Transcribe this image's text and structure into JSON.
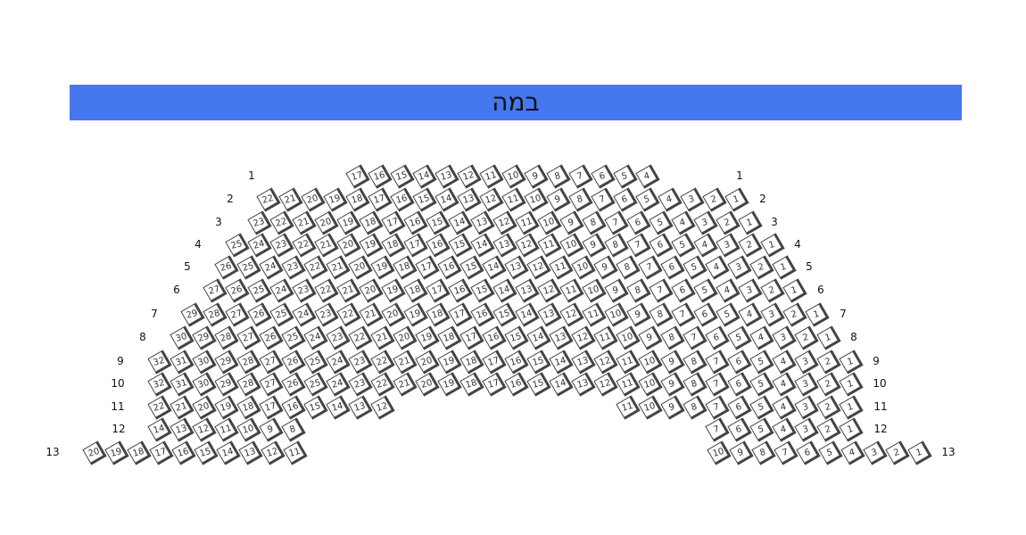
{
  "stage": {
    "label": "במה",
    "color": "#4577ee"
  },
  "rows": [
    {
      "label": "1",
      "blocks": [
        [
          17,
          16,
          15,
          14,
          13,
          12,
          11,
          10,
          9,
          8,
          7,
          6,
          5,
          4
        ]
      ]
    },
    {
      "label": "2",
      "blocks": [
        [
          22,
          21,
          20,
          19,
          18,
          17,
          16,
          15,
          14,
          13,
          12,
          11,
          10,
          9,
          8,
          7,
          6,
          5,
          4,
          3,
          2,
          1
        ]
      ]
    },
    {
      "label": "3",
      "blocks": [
        [
          23,
          22,
          21,
          20,
          19,
          18,
          17,
          16,
          15,
          14,
          13,
          12,
          11,
          10,
          9,
          8,
          7,
          6,
          5,
          4,
          3,
          2,
          1
        ]
      ]
    },
    {
      "label": "4",
      "blocks": [
        [
          25,
          24,
          23,
          22,
          21,
          20,
          19,
          18,
          17,
          16,
          15,
          14,
          13,
          12,
          11,
          10,
          9,
          8,
          7,
          6,
          5,
          4,
          3,
          2,
          1
        ]
      ]
    },
    {
      "label": "5",
      "blocks": [
        [
          26,
          25,
          24,
          23,
          22,
          21,
          20,
          19,
          18,
          17,
          16,
          15,
          14,
          13,
          12,
          11,
          10,
          9,
          8,
          7,
          6,
          5,
          4,
          3,
          2,
          1
        ]
      ]
    },
    {
      "label": "6",
      "blocks": [
        [
          27,
          26,
          25,
          24,
          23,
          22,
          21,
          20,
          19,
          18,
          17,
          16,
          15,
          14,
          13,
          12,
          11,
          10,
          9,
          8,
          7,
          6,
          5,
          4,
          3,
          2,
          1
        ]
      ]
    },
    {
      "label": "7",
      "blocks": [
        [
          29,
          28,
          27,
          26,
          25,
          24,
          23,
          22,
          21,
          20,
          19,
          18,
          17,
          16,
          15,
          14,
          13,
          12,
          11,
          10,
          9,
          8,
          7,
          6,
          5,
          4,
          3,
          2,
          1
        ]
      ]
    },
    {
      "label": "8",
      "blocks": [
        [
          30,
          29,
          28,
          27,
          26,
          25,
          24,
          23,
          22,
          21,
          20,
          19,
          18,
          17,
          16,
          15,
          14,
          13,
          12,
          11,
          10,
          9,
          8,
          7,
          6,
          5,
          4,
          3,
          2,
          1
        ]
      ]
    },
    {
      "label": "9",
      "blocks": [
        [
          32,
          31,
          30,
          29,
          28,
          27,
          26,
          25,
          24,
          23,
          22,
          21,
          20,
          19,
          18,
          17,
          16,
          15,
          14,
          13,
          12,
          11,
          10,
          9,
          8,
          7,
          6,
          5,
          4,
          3,
          2,
          1
        ]
      ]
    },
    {
      "label": "10",
      "blocks": [
        [
          32,
          31,
          30,
          29,
          28,
          27,
          26,
          25,
          24,
          23,
          22,
          21,
          20,
          19,
          18,
          17,
          16,
          15,
          14,
          13,
          12,
          11,
          10,
          9,
          8,
          7,
          6,
          5,
          4,
          3,
          2,
          1
        ]
      ]
    },
    {
      "label": "11",
      "blocks": [
        [
          22,
          21,
          20,
          19,
          18,
          17,
          16,
          15,
          14,
          13,
          12
        ],
        [
          11,
          10,
          9,
          8,
          7,
          6,
          5,
          4,
          3,
          2,
          1
        ]
      ]
    },
    {
      "label": "12",
      "blocks": [
        [
          14,
          13,
          12,
          11,
          10,
          9,
          8
        ],
        [
          7,
          6,
          5,
          4,
          3,
          2,
          1
        ]
      ]
    },
    {
      "label": "13",
      "blocks": [
        [
          20,
          19,
          18,
          17,
          16,
          15,
          14,
          13,
          12,
          11
        ],
        [
          10,
          9,
          8,
          7,
          6,
          5,
          4,
          3,
          2,
          1
        ]
      ]
    }
  ]
}
